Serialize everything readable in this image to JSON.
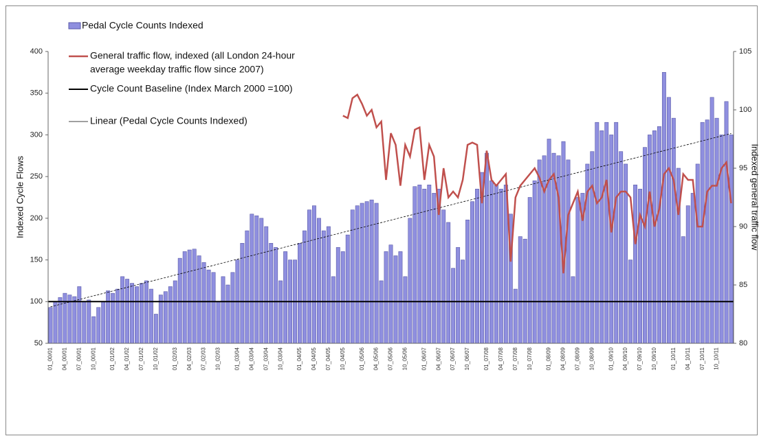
{
  "chart_data": {
    "type": "bar-line",
    "y_label": "Indexed Cycle Flows",
    "y2_label": "Indexed general traffic flow",
    "ylim": [
      50,
      400
    ],
    "yticks": [
      50,
      100,
      150,
      200,
      250,
      300,
      350,
      400
    ],
    "y2lim": [
      80,
      105
    ],
    "y2ticks": [
      80,
      85,
      90,
      95,
      100,
      105
    ],
    "baseline": 100,
    "baseline_name": "Cycle Count Baseline (Index March 2000 =100)",
    "trend_name": "Linear (Pedal Cycle Counts Indexed)",
    "categories": [
      "01_00/01",
      null,
      null,
      "04_00/01",
      null,
      null,
      "07_00/01",
      null,
      null,
      "10_00/01",
      null,
      null,
      null,
      "01_01/02",
      null,
      null,
      "04_01/02",
      null,
      null,
      "07_01/02",
      null,
      null,
      "10_01/02",
      null,
      null,
      null,
      "01_02/03",
      null,
      null,
      "04_02/03",
      null,
      null,
      "07_02/03",
      null,
      null,
      "10_02/03",
      null,
      null,
      null,
      "01_03/04",
      null,
      null,
      "04_03/04",
      null,
      null,
      "07_03/04",
      null,
      null,
      "10_03/04",
      null,
      null,
      null,
      "01_04/05",
      null,
      null,
      "04_04/05",
      null,
      null,
      "07_04/05",
      null,
      null,
      "10_04/05",
      null,
      null,
      null,
      "01_05/06",
      null,
      null,
      "04_05/06",
      null,
      null,
      "07_05/06",
      null,
      null,
      "10_05/06",
      null,
      null,
      null,
      "01_06/07",
      null,
      null,
      "04_06/07",
      null,
      null,
      "07_06/07",
      null,
      null,
      "10_06/07",
      null,
      null,
      null,
      "01_07/08",
      null,
      null,
      "04_07/08",
      null,
      null,
      "07_07/08",
      null,
      null,
      "10_07/08",
      null,
      null,
      null,
      "01_08/09",
      null,
      null,
      "04_08/09",
      null,
      null,
      "07_08/09",
      null,
      null,
      "10_08/09",
      null,
      null,
      null,
      "01_09/10",
      null,
      null,
      "04_09/10",
      null,
      null,
      "07_09/10",
      null,
      null,
      "10_09/10",
      null,
      null,
      null,
      "01_10/11",
      null,
      null,
      "04_10/11",
      null,
      null,
      "07_10/11",
      null,
      null,
      "10_10/11",
      null,
      null,
      null
    ],
    "series": [
      {
        "name": "Pedal Cycle Counts Indexed",
        "kind": "bar",
        "color": "#8f8fdf",
        "values": [
          93,
          100,
          105,
          110,
          108,
          106,
          118,
          100,
          102,
          82,
          93,
          100,
          113,
          110,
          115,
          130,
          127,
          122,
          118,
          122,
          125,
          115,
          85,
          108,
          112,
          118,
          125,
          152,
          160,
          162,
          163,
          155,
          147,
          138,
          135,
          100,
          130,
          120,
          135,
          150,
          170,
          185,
          205,
          203,
          200,
          190,
          170,
          165,
          125,
          160,
          150,
          150,
          170,
          185,
          210,
          215,
          200,
          185,
          190,
          130,
          165,
          160,
          180,
          210,
          215,
          218,
          220,
          222,
          218,
          125,
          160,
          168,
          155,
          160,
          130,
          200,
          238,
          240,
          235,
          240,
          230,
          235,
          210,
          195,
          140,
          165,
          150,
          198,
          220,
          235,
          255,
          278,
          245,
          240,
          235,
          240,
          205,
          115,
          178,
          175,
          225,
          245,
          270,
          275,
          295,
          278,
          275,
          292,
          270,
          130,
          225,
          230,
          265,
          280,
          315,
          305,
          315,
          300,
          315,
          280,
          265,
          150,
          240,
          235,
          285,
          300,
          305,
          310,
          375,
          345,
          320,
          260,
          178,
          215,
          230,
          265,
          315,
          318,
          345,
          320,
          300,
          340,
          300
        ]
      },
      {
        "name": [
          "General traffic flow, indexed (all London 24-hour",
          "average weekday traffic flow since 2007)"
        ],
        "kind": "line",
        "axis": "y2",
        "color": "#c0504d",
        "values": [
          null,
          null,
          null,
          null,
          null,
          null,
          null,
          null,
          null,
          null,
          null,
          null,
          null,
          null,
          null,
          null,
          null,
          null,
          null,
          null,
          null,
          null,
          null,
          null,
          null,
          null,
          null,
          null,
          null,
          null,
          null,
          null,
          null,
          null,
          null,
          null,
          null,
          null,
          null,
          null,
          null,
          null,
          null,
          null,
          null,
          null,
          null,
          null,
          null,
          null,
          null,
          null,
          null,
          null,
          null,
          null,
          null,
          null,
          null,
          null,
          null,
          99.5,
          99.3,
          101,
          101.3,
          100.5,
          99.5,
          100,
          98.5,
          99,
          94,
          98,
          97,
          93.5,
          97,
          96,
          98.3,
          98.5,
          94,
          97,
          96,
          91,
          95,
          92.5,
          93,
          92.5,
          94,
          97,
          97.2,
          97,
          92,
          96.5,
          94,
          93.5,
          94,
          94.5,
          87,
          92.5,
          93.5,
          94,
          94.5,
          95,
          94.2,
          93,
          94,
          94.5,
          92.5,
          86,
          91,
          92,
          93,
          90.5,
          93,
          93.5,
          92,
          92.5,
          94,
          89.5,
          92.5,
          93,
          93,
          92.5,
          88.5,
          91,
          90,
          93,
          90,
          91.5,
          94.5,
          95,
          94,
          91,
          94.5,
          94,
          94,
          90,
          90,
          93,
          93.5,
          93.5,
          95,
          95.5,
          92
        ]
      }
    ]
  }
}
